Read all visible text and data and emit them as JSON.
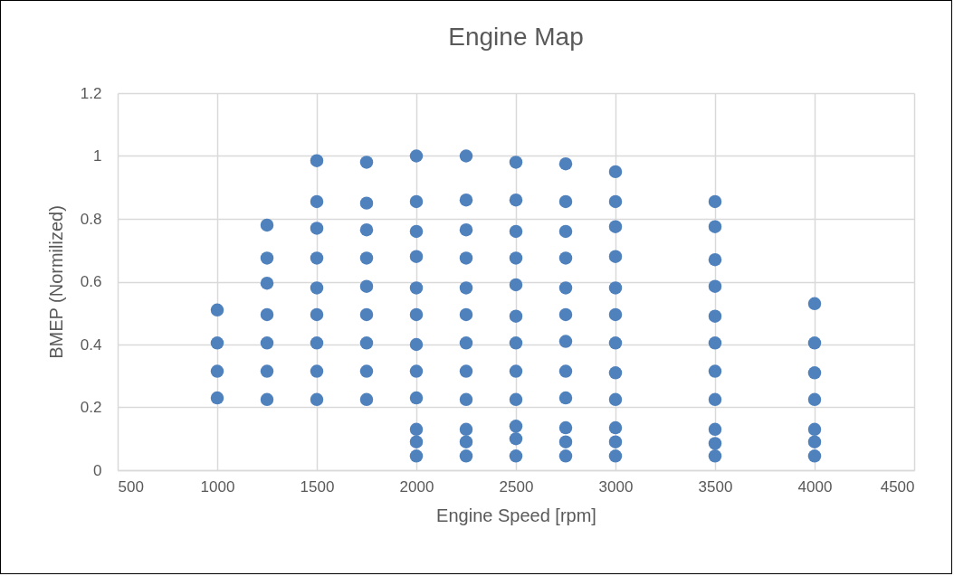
{
  "chart_data": {
    "type": "scatter",
    "title": "Engine Map",
    "xlabel": "Engine Speed [rpm]",
    "ylabel": "BMEP (Normilized)",
    "x": [
      1000,
      1000,
      1000,
      1000,
      1250,
      1250,
      1250,
      1250,
      1250,
      1250,
      1250,
      1500,
      1500,
      1500,
      1500,
      1500,
      1500,
      1500,
      1500,
      1500,
      1750,
      1750,
      1750,
      1750,
      1750,
      1750,
      1750,
      1750,
      1750,
      2000,
      2000,
      2000,
      2000,
      2000,
      2000,
      2000,
      2000,
      2000,
      2000,
      2000,
      2000,
      2250,
      2250,
      2250,
      2250,
      2250,
      2250,
      2250,
      2250,
      2250,
      2250,
      2250,
      2250,
      2500,
      2500,
      2500,
      2500,
      2500,
      2500,
      2500,
      2500,
      2500,
      2500,
      2500,
      2500,
      2750,
      2750,
      2750,
      2750,
      2750,
      2750,
      2750,
      2750,
      2750,
      2750,
      2750,
      2750,
      3000,
      3000,
      3000,
      3000,
      3000,
      3000,
      3000,
      3000,
      3000,
      3000,
      3000,
      3000,
      3500,
      3500,
      3500,
      3500,
      3500,
      3500,
      3500,
      3500,
      3500,
      3500,
      3500,
      4000,
      4000,
      4000,
      4000,
      4000,
      4000,
      4000
    ],
    "values": [
      0.51,
      0.405,
      0.315,
      0.23,
      0.78,
      0.675,
      0.595,
      0.495,
      0.405,
      0.315,
      0.225,
      0.985,
      0.855,
      0.77,
      0.675,
      0.58,
      0.495,
      0.405,
      0.315,
      0.225,
      0.98,
      0.85,
      0.765,
      0.675,
      0.585,
      0.495,
      0.405,
      0.315,
      0.225,
      1.0,
      0.855,
      0.76,
      0.68,
      0.58,
      0.495,
      0.4,
      0.315,
      0.23,
      0.13,
      0.09,
      0.045,
      1.0,
      0.86,
      0.765,
      0.675,
      0.58,
      0.495,
      0.405,
      0.315,
      0.225,
      0.13,
      0.09,
      0.045,
      0.98,
      0.86,
      0.76,
      0.675,
      0.59,
      0.49,
      0.405,
      0.315,
      0.225,
      0.14,
      0.1,
      0.045,
      0.975,
      0.855,
      0.76,
      0.675,
      0.58,
      0.495,
      0.41,
      0.315,
      0.23,
      0.135,
      0.09,
      0.045,
      0.95,
      0.855,
      0.775,
      0.68,
      0.58,
      0.495,
      0.405,
      0.31,
      0.225,
      0.135,
      0.09,
      0.045,
      0.855,
      0.775,
      0.67,
      0.585,
      0.49,
      0.405,
      0.315,
      0.225,
      0.13,
      0.085,
      0.045,
      0.53,
      0.405,
      0.31,
      0.225,
      0.13,
      0.09,
      0.045
    ],
    "color": "#4f81bd",
    "marker": "circle",
    "grid": true,
    "xlim": [
      500,
      4500
    ],
    "xticks": [
      500,
      1000,
      1500,
      2000,
      2500,
      3000,
      3500,
      4000,
      4500
    ],
    "ylim": [
      0,
      1.2
    ],
    "yticks": [
      0,
      0.2,
      0.4,
      0.6,
      0.8,
      1,
      1.2
    ]
  }
}
